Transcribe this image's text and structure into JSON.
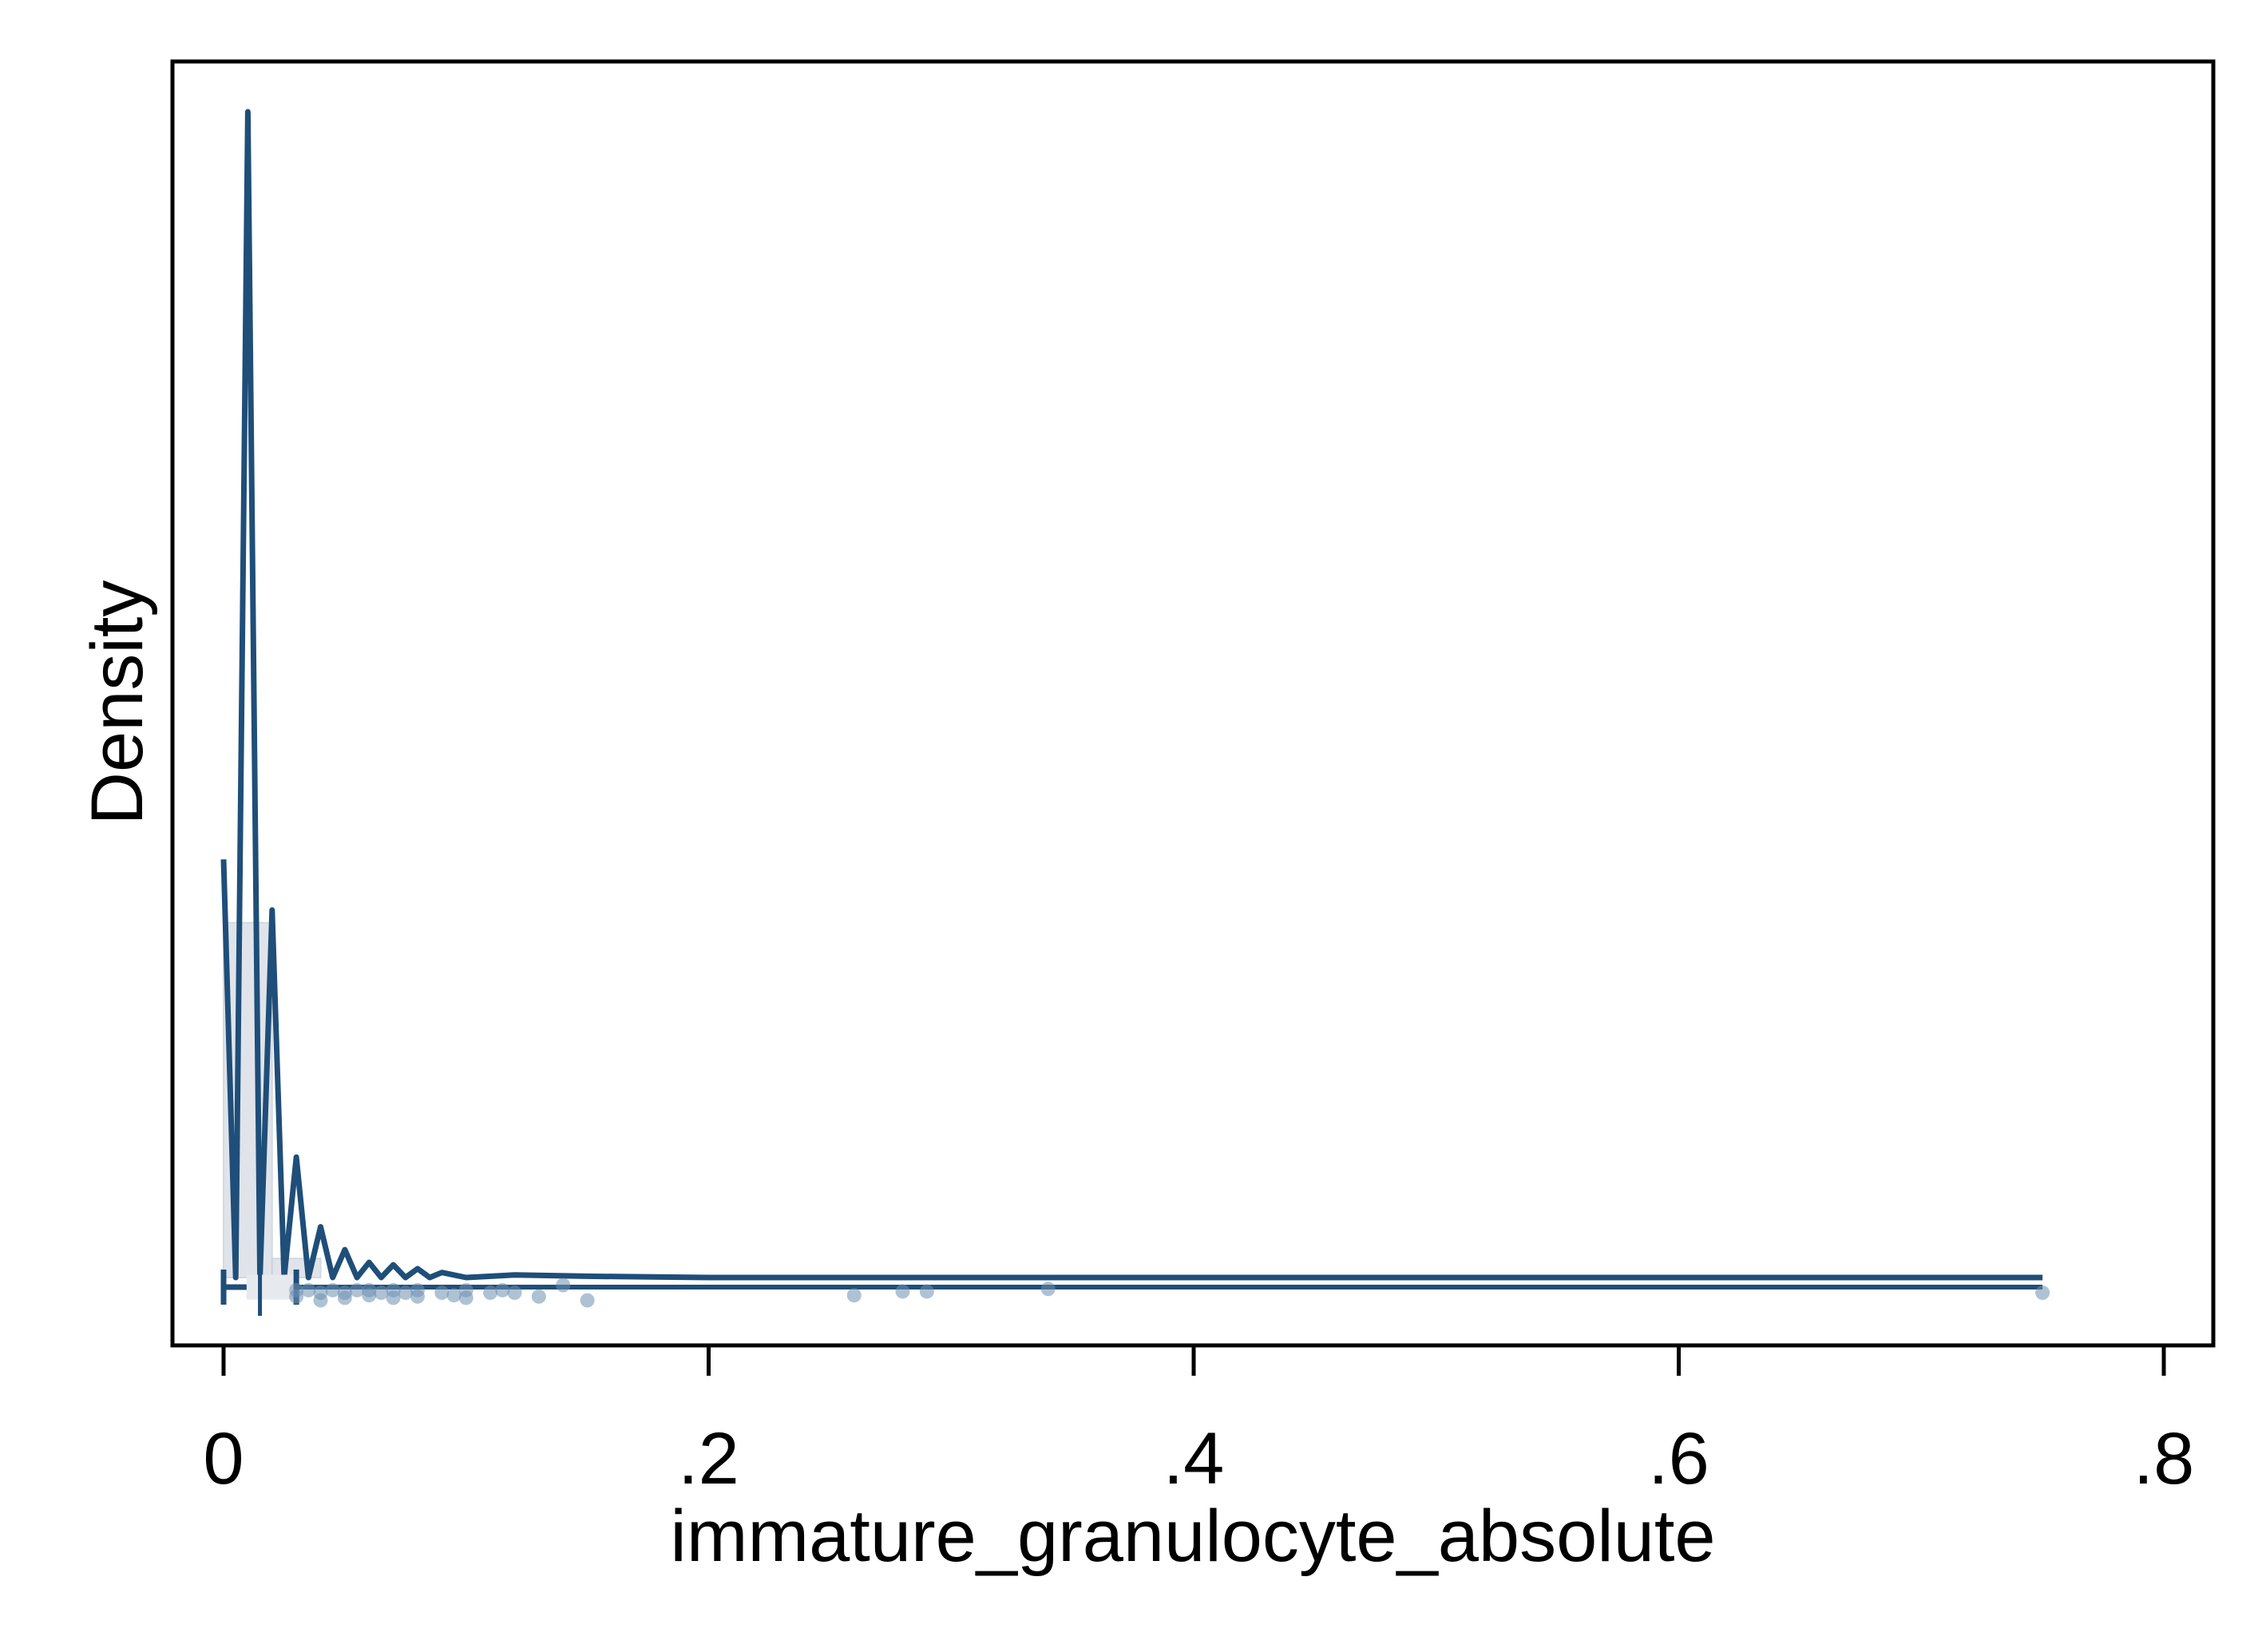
{
  "chart_data": {
    "type": "line",
    "title": "",
    "xlabel": "immature_granulocyte_absolute",
    "ylabel": "Density",
    "xlim": [
      -0.02,
      0.82
    ],
    "ylim": [
      -0.5,
      10
    ],
    "x_ticks": [
      {
        "value": 0,
        "label": "0"
      },
      {
        "value": 0.2,
        "label": ".2"
      },
      {
        "value": 0.4,
        "label": ".4"
      },
      {
        "value": 0.6,
        "label": ".6"
      },
      {
        "value": 0.8,
        "label": ".8"
      }
    ],
    "y_ticks_shown": false,
    "grid": false,
    "legend": "none",
    "colors": {
      "line": "#1f4e79",
      "points": "#6d8fb1",
      "histogram": "#d9dee5",
      "frame": "#000000"
    },
    "series": [
      {
        "kind": "density",
        "x": [
          0.0,
          0.005,
          0.01,
          0.015,
          0.02,
          0.025,
          0.03,
          0.035,
          0.04,
          0.045,
          0.05,
          0.055,
          0.06,
          0.065,
          0.07,
          0.075,
          0.08,
          0.085,
          0.09,
          0.1,
          0.12,
          0.15,
          0.2,
          0.3,
          0.4,
          0.5,
          0.6,
          0.7,
          0.75
        ],
        "y": [
          3.3,
          0.0,
          9.2,
          0.0,
          2.9,
          0.0,
          0.95,
          0.0,
          0.4,
          0.0,
          0.22,
          0.0,
          0.12,
          0.0,
          0.1,
          0.0,
          0.07,
          0.0,
          0.04,
          0.0,
          0.02,
          0.01,
          0.0,
          0.0,
          0.0,
          0.0,
          0.0,
          0.0,
          0.0
        ]
      },
      {
        "kind": "histogram",
        "bins": [
          {
            "x0": 0.0,
            "x1": 0.02,
            "y": 2.8
          },
          {
            "x0": 0.02,
            "x1": 0.04,
            "y": 0.15
          }
        ]
      },
      {
        "kind": "jittered-points",
        "x": [
          0.03,
          0.03,
          0.035,
          0.04,
          0.04,
          0.045,
          0.05,
          0.05,
          0.055,
          0.06,
          0.06,
          0.065,
          0.07,
          0.07,
          0.075,
          0.08,
          0.08,
          0.09,
          0.095,
          0.1,
          0.1,
          0.11,
          0.115,
          0.12,
          0.13,
          0.14,
          0.15,
          0.26,
          0.28,
          0.29,
          0.34,
          0.75
        ],
        "y": [
          -0.1,
          -0.15,
          -0.1,
          -0.12,
          -0.18,
          -0.1,
          -0.12,
          -0.16,
          -0.1,
          -0.14,
          -0.1,
          -0.12,
          -0.1,
          -0.16,
          -0.12,
          -0.1,
          -0.15,
          -0.12,
          -0.14,
          -0.1,
          -0.16,
          -0.12,
          -0.1,
          -0.12,
          -0.15,
          -0.06,
          -0.18,
          -0.14,
          -0.11,
          -0.11,
          -0.09,
          -0.12
        ]
      },
      {
        "kind": "box",
        "min": 0.0,
        "q1": 0.01,
        "median": 0.015,
        "q3": 0.03,
        "whisker_high": 0.75
      }
    ]
  }
}
